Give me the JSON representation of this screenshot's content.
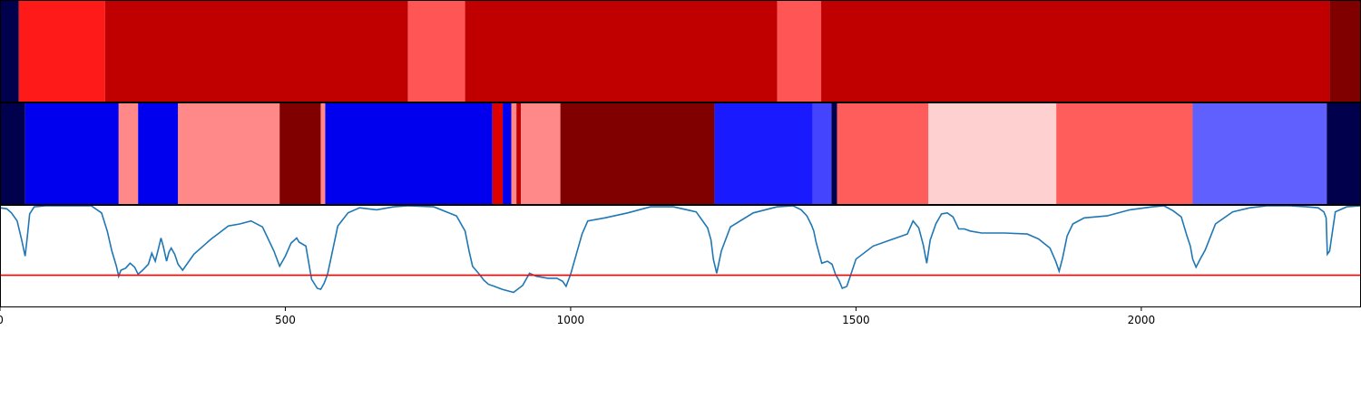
{
  "chart_data": {
    "type": "heatmap",
    "title": "",
    "xlabel": "",
    "ylabel": "",
    "xlim": [
      0,
      2385
    ],
    "xticks": [
      0,
      500,
      1000,
      1500,
      2000
    ],
    "xtick_labels": [
      "0",
      "500",
      "1000",
      "1500",
      "2000"
    ],
    "segment_tracks": [
      {
        "name": "",
        "segments": [
          {
            "start": 0,
            "end": 33,
            "color": "#00004c"
          },
          {
            "start": 33,
            "end": 184,
            "color": "#ff1a1a"
          },
          {
            "start": 184,
            "end": 715,
            "color": "#c00000"
          },
          {
            "start": 715,
            "end": 815,
            "color": "#ff5555"
          },
          {
            "start": 815,
            "end": 1362,
            "color": "#c00000"
          },
          {
            "start": 1362,
            "end": 1439,
            "color": "#ff5555"
          },
          {
            "start": 1439,
            "end": 2330,
            "color": "#c00000"
          },
          {
            "start": 2330,
            "end": 2385,
            "color": "#800000"
          }
        ]
      },
      {
        "name": "",
        "segments": [
          {
            "start": 0,
            "end": 44,
            "color": "#00004c"
          },
          {
            "start": 44,
            "end": 208,
            "color": "#0000ee"
          },
          {
            "start": 208,
            "end": 242,
            "color": "#ff8888"
          },
          {
            "start": 242,
            "end": 312,
            "color": "#0000ee"
          },
          {
            "start": 312,
            "end": 490,
            "color": "#ff8888"
          },
          {
            "start": 490,
            "end": 562,
            "color": "#800000"
          },
          {
            "start": 562,
            "end": 570,
            "color": "#ff8888"
          },
          {
            "start": 570,
            "end": 863,
            "color": "#0000ee"
          },
          {
            "start": 863,
            "end": 881,
            "color": "#dd0000"
          },
          {
            "start": 881,
            "end": 896,
            "color": "#0000ee"
          },
          {
            "start": 896,
            "end": 905,
            "color": "#ff8888"
          },
          {
            "start": 905,
            "end": 913,
            "color": "#c00000"
          },
          {
            "start": 913,
            "end": 982,
            "color": "#ff8888"
          },
          {
            "start": 982,
            "end": 1252,
            "color": "#800000"
          },
          {
            "start": 1252,
            "end": 1424,
            "color": "#1a1aff"
          },
          {
            "start": 1424,
            "end": 1457,
            "color": "#4444ff"
          },
          {
            "start": 1457,
            "end": 1467,
            "color": "#00004c"
          },
          {
            "start": 1467,
            "end": 1627,
            "color": "#ff5c5c"
          },
          {
            "start": 1627,
            "end": 1851,
            "color": "#ffd0d0"
          },
          {
            "start": 1851,
            "end": 2090,
            "color": "#ff5c5c"
          },
          {
            "start": 2090,
            "end": 2325,
            "color": "#6060ff"
          },
          {
            "start": 2325,
            "end": 2385,
            "color": "#00004c"
          }
        ]
      }
    ],
    "line": {
      "color": "#1f77b4",
      "ylim": [
        0,
        1
      ],
      "threshold": 0.31,
      "threshold_color": "#ff0000",
      "x": [
        0,
        12,
        20,
        30,
        38,
        44,
        48,
        52,
        60,
        80,
        120,
        160,
        178,
        188,
        196,
        204,
        208,
        212,
        220,
        228,
        236,
        242,
        250,
        260,
        266,
        272,
        278,
        282,
        286,
        292,
        296,
        300,
        306,
        312,
        320,
        340,
        360,
        370,
        384,
        400,
        420,
        440,
        460,
        480,
        490,
        500,
        510,
        520,
        524,
        536,
        546,
        556,
        562,
        568,
        574,
        580,
        592,
        610,
        630,
        660,
        690,
        715,
        760,
        800,
        815,
        822,
        828,
        834,
        840,
        848,
        856,
        866,
        880,
        900,
        916,
        928,
        940,
        960,
        976,
        986,
        992,
        1000,
        1010,
        1020,
        1030,
        1060,
        1100,
        1140,
        1180,
        1220,
        1240,
        1246,
        1250,
        1256,
        1264,
        1280,
        1320,
        1362,
        1390,
        1404,
        1414,
        1422,
        1426,
        1430,
        1440,
        1450,
        1458,
        1464,
        1470,
        1476,
        1484,
        1490,
        1500,
        1530,
        1560,
        1590,
        1600,
        1610,
        1618,
        1624,
        1630,
        1640,
        1650,
        1660,
        1670,
        1680,
        1690,
        1700,
        1720,
        1760,
        1800,
        1820,
        1840,
        1850,
        1856,
        1862,
        1870,
        1880,
        1900,
        1940,
        1980,
        2020,
        2040,
        2056,
        2070,
        2080,
        2086,
        2090,
        2096,
        2104,
        2112,
        2130,
        2160,
        2190,
        2220,
        2260,
        2290,
        2310,
        2320,
        2324,
        2326,
        2330,
        2340,
        2360,
        2385
      ],
      "y": [
        0.98,
        0.97,
        0.93,
        0.85,
        0.66,
        0.5,
        0.7,
        0.92,
        0.99,
        1.0,
        1.0,
        1.0,
        0.93,
        0.75,
        0.55,
        0.4,
        0.3,
        0.36,
        0.38,
        0.43,
        0.39,
        0.32,
        0.36,
        0.42,
        0.53,
        0.45,
        0.58,
        0.68,
        0.6,
        0.45,
        0.54,
        0.58,
        0.52,
        0.42,
        0.36,
        0.52,
        0.62,
        0.67,
        0.73,
        0.8,
        0.82,
        0.85,
        0.79,
        0.55,
        0.4,
        0.5,
        0.63,
        0.68,
        0.64,
        0.6,
        0.27,
        0.18,
        0.17,
        0.23,
        0.32,
        0.48,
        0.8,
        0.93,
        0.98,
        0.96,
        0.99,
        1.0,
        0.99,
        0.9,
        0.75,
        0.55,
        0.4,
        0.36,
        0.32,
        0.26,
        0.22,
        0.2,
        0.17,
        0.14,
        0.21,
        0.33,
        0.3,
        0.28,
        0.28,
        0.25,
        0.2,
        0.32,
        0.52,
        0.72,
        0.85,
        0.88,
        0.93,
        0.99,
        0.99,
        0.94,
        0.78,
        0.66,
        0.47,
        0.33,
        0.55,
        0.79,
        0.93,
        0.99,
        1.0,
        0.96,
        0.9,
        0.81,
        0.75,
        0.64,
        0.43,
        0.45,
        0.42,
        0.32,
        0.26,
        0.18,
        0.2,
        0.3,
        0.47,
        0.6,
        0.66,
        0.72,
        0.85,
        0.78,
        0.61,
        0.43,
        0.66,
        0.82,
        0.92,
        0.93,
        0.89,
        0.77,
        0.77,
        0.75,
        0.73,
        0.73,
        0.72,
        0.67,
        0.58,
        0.45,
        0.35,
        0.48,
        0.7,
        0.82,
        0.88,
        0.9,
        0.96,
        0.99,
        1.0,
        0.95,
        0.89,
        0.7,
        0.6,
        0.47,
        0.39,
        0.48,
        0.56,
        0.82,
        0.94,
        0.98,
        1.0,
        1.0,
        0.99,
        0.98,
        0.94,
        0.88,
        0.52,
        0.55,
        0.94,
        0.99,
        1.0,
        1.0
      ]
    }
  }
}
